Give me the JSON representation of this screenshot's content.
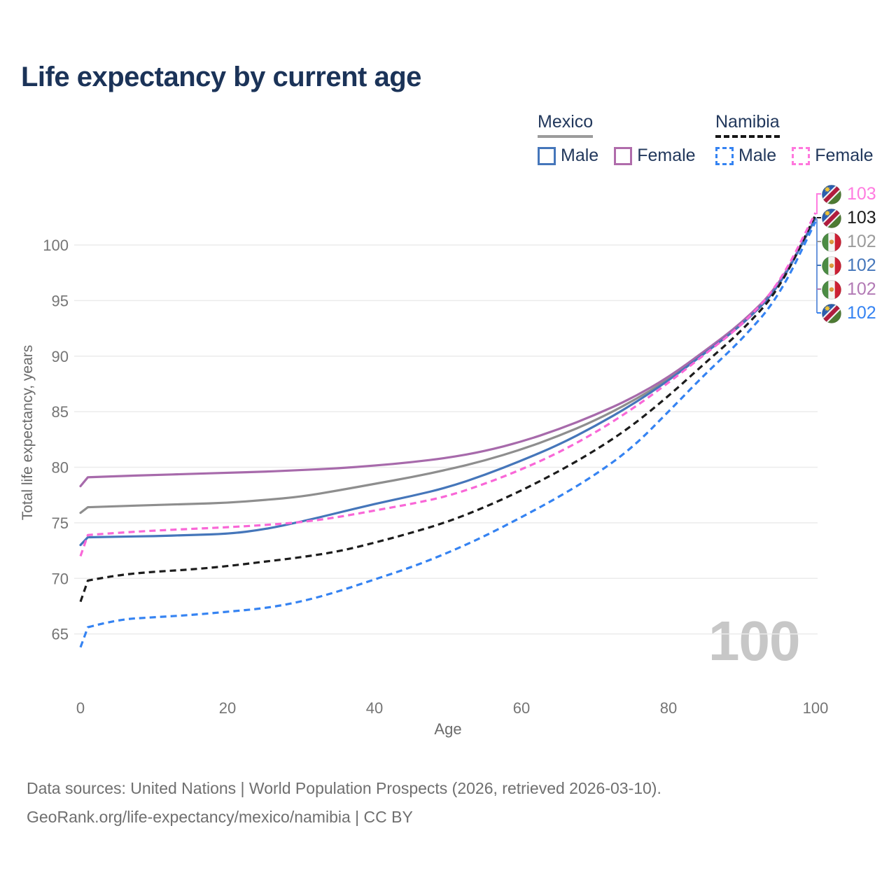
{
  "page": {
    "title": "Life expectancy by current age"
  },
  "legend": {
    "groups": [
      {
        "country": "Mexico",
        "line_style": "solid",
        "line_color": "#9b9b9b",
        "items": [
          {
            "label": "Male",
            "color": "#4576ba",
            "dashed": false
          },
          {
            "label": "Female",
            "color": "#b06cab",
            "dashed": false
          }
        ]
      },
      {
        "country": "Namibia",
        "line_style": "dashed",
        "line_color": "#161616",
        "items": [
          {
            "label": "Male",
            "color": "#3583f2",
            "dashed": true
          },
          {
            "label": "Female",
            "color": "#ff77dd",
            "dashed": true
          }
        ]
      }
    ]
  },
  "chart_data": {
    "type": "line",
    "title": "Life expectancy by current age",
    "xlabel": "Age",
    "ylabel": "Total life expectancy, years",
    "x_ticks": [
      0,
      20,
      40,
      60,
      80,
      100
    ],
    "y_ticks": [
      65,
      70,
      75,
      80,
      85,
      90,
      95,
      100
    ],
    "xlim": [
      0,
      100
    ],
    "ylim": [
      63,
      103.5
    ],
    "grid": "horizontal",
    "legend_position": "top-right",
    "x": [
      0,
      1,
      5,
      10,
      15,
      20,
      25,
      30,
      35,
      40,
      45,
      50,
      55,
      60,
      65,
      70,
      75,
      80,
      85,
      90,
      95,
      100
    ],
    "series": [
      {
        "name": "Mexico (both sexes)",
        "country": "Mexico",
        "sex": "both",
        "color": "#8e8e8e",
        "dashed": false,
        "values": [
          75.9,
          76.4,
          76.5,
          76.6,
          76.7,
          76.8,
          77.05,
          77.35,
          77.9,
          78.5,
          79.1,
          79.8,
          80.6,
          81.6,
          82.8,
          84.2,
          85.9,
          87.9,
          90.4,
          92.9,
          96.2,
          102.4
        ]
      },
      {
        "name": "Mexico Female",
        "country": "Mexico",
        "sex": "female",
        "color": "#a76aab",
        "dashed": false,
        "values": [
          78.3,
          79.1,
          79.2,
          79.3,
          79.4,
          79.5,
          79.6,
          79.75,
          79.9,
          80.15,
          80.45,
          80.85,
          81.45,
          82.3,
          83.4,
          84.7,
          86.2,
          88.1,
          90.5,
          93.0,
          96.3,
          102.4
        ]
      },
      {
        "name": "Mexico Male",
        "country": "Mexico",
        "sex": "male",
        "color": "#4576ba",
        "dashed": false,
        "values": [
          73.0,
          73.7,
          73.75,
          73.8,
          73.9,
          74.0,
          74.4,
          75.1,
          75.9,
          76.7,
          77.4,
          78.2,
          79.3,
          80.6,
          82.0,
          83.7,
          85.6,
          87.8,
          90.3,
          92.8,
          96.1,
          102.4
        ]
      },
      {
        "name": "Namibia (both sexes)",
        "country": "Namibia",
        "sex": "both",
        "color": "#1c1c1c",
        "dashed": true,
        "values": [
          67.9,
          69.8,
          70.3,
          70.6,
          70.8,
          71.1,
          71.5,
          71.9,
          72.4,
          73.2,
          74.1,
          75.1,
          76.4,
          77.9,
          79.6,
          81.5,
          83.7,
          86.4,
          89.4,
          92.3,
          95.9,
          102.7
        ]
      },
      {
        "name": "Namibia Female",
        "country": "Namibia",
        "sex": "female",
        "color": "#f967d7",
        "dashed": true,
        "values": [
          72.0,
          73.9,
          74.1,
          74.3,
          74.45,
          74.6,
          74.8,
          75.05,
          75.5,
          76.1,
          76.7,
          77.4,
          78.5,
          79.8,
          81.3,
          83.1,
          85.2,
          87.6,
          90.2,
          92.8,
          96.4,
          102.9
        ]
      },
      {
        "name": "Namibia Male",
        "country": "Namibia",
        "sex": "male",
        "color": "#3583f2",
        "dashed": true,
        "values": [
          63.8,
          65.6,
          66.3,
          66.5,
          66.7,
          67.0,
          67.3,
          67.9,
          68.8,
          69.9,
          71.0,
          72.3,
          73.8,
          75.5,
          77.3,
          79.3,
          81.7,
          85.0,
          88.4,
          91.5,
          95.3,
          102.1
        ]
      }
    ],
    "end_labels": [
      {
        "flag": "namibia",
        "series": "Namibia Female",
        "value": "103",
        "color": "#ff7ce0"
      },
      {
        "flag": "namibia",
        "series": "Namibia (both sexes)",
        "value": "103",
        "color": "#1c1c1c"
      },
      {
        "flag": "mexico",
        "series": "Mexico (both sexes)",
        "value": "102",
        "color": "#9b9b9b"
      },
      {
        "flag": "mexico",
        "series": "Mexico Male",
        "value": "102",
        "color": "#4576ba"
      },
      {
        "flag": "mexico",
        "series": "Mexico Female",
        "value": "102",
        "color": "#b27ab5"
      },
      {
        "flag": "namibia",
        "series": "Namibia Male",
        "value": "102",
        "color": "#3583f2"
      }
    ],
    "watermark": "100"
  },
  "footer": {
    "line1": "Data sources: United Nations | World Population Prospects (2026, retrieved 2026-03-10).",
    "line2": "GeoRank.org/life-expectancy/mexico/namibia | CC BY"
  }
}
